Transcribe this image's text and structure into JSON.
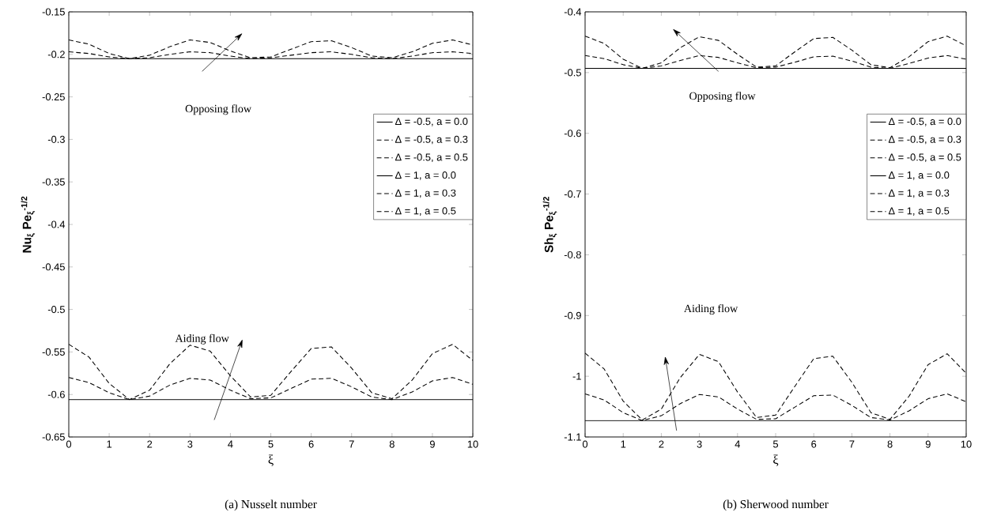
{
  "chart_data": [
    {
      "type": "line",
      "xlabel": "ξ",
      "ylabel": "Nu$_{ξ}$ Pe$_{ξ}$$^{-1/2}$",
      "x": [
        0,
        0.5,
        1,
        1.5,
        2,
        2.5,
        3,
        3.5,
        4,
        4.5,
        5,
        5.5,
        6,
        6.5,
        7,
        7.5,
        8,
        8.5,
        9,
        9.5,
        10
      ],
      "xlim": [
        0,
        10
      ],
      "xticks": [
        0,
        1,
        2,
        3,
        4,
        5,
        6,
        7,
        8,
        9,
        10
      ],
      "ylim": [
        -0.65,
        -0.15
      ],
      "yticks": [
        -0.65,
        -0.6,
        -0.55,
        -0.5,
        -0.45,
        -0.4,
        -0.35,
        -0.3,
        -0.25,
        -0.2,
        -0.15
      ],
      "legend": "right",
      "series": [
        {
          "name": "Δ = -0.5, a = 0.0",
          "color": "#000000",
          "line_style": "solid",
          "values": [
            -0.205,
            -0.205,
            -0.205,
            -0.205,
            -0.205,
            -0.205,
            -0.205,
            -0.205,
            -0.205,
            -0.205,
            -0.205,
            -0.205,
            -0.205,
            -0.205,
            -0.205,
            -0.205,
            -0.205,
            -0.205,
            -0.205,
            -0.205,
            -0.205
          ]
        },
        {
          "name": "Δ = -0.5, a = 0.3",
          "color": "#000000",
          "line_style": "dashed",
          "values": [
            -0.197,
            -0.199,
            -0.203,
            -0.205,
            -0.204,
            -0.2,
            -0.197,
            -0.198,
            -0.202,
            -0.205,
            -0.204,
            -0.201,
            -0.198,
            -0.197,
            -0.2,
            -0.204,
            -0.205,
            -0.202,
            -0.198,
            -0.197,
            -0.199
          ]
        },
        {
          "name": "Δ = -0.5, a = 0.5",
          "color": "#000000",
          "line_style": "dashed",
          "values": [
            -0.183,
            -0.188,
            -0.199,
            -0.205,
            -0.201,
            -0.191,
            -0.183,
            -0.186,
            -0.196,
            -0.204,
            -0.203,
            -0.194,
            -0.185,
            -0.184,
            -0.192,
            -0.202,
            -0.204,
            -0.197,
            -0.187,
            -0.183,
            -0.189
          ]
        },
        {
          "name": "Δ = 1, a = 0.0",
          "color": "#000000",
          "line_style": "solid",
          "values": [
            -0.606,
            -0.606,
            -0.606,
            -0.606,
            -0.606,
            -0.606,
            -0.606,
            -0.606,
            -0.606,
            -0.606,
            -0.606,
            -0.606,
            -0.606,
            -0.606,
            -0.606,
            -0.606,
            -0.606,
            -0.606,
            -0.606,
            -0.606,
            -0.606
          ]
        },
        {
          "name": "Δ = 1, a = 0.3",
          "color": "#000000",
          "line_style": "dashed",
          "values": [
            -0.58,
            -0.586,
            -0.598,
            -0.606,
            -0.602,
            -0.589,
            -0.581,
            -0.583,
            -0.595,
            -0.605,
            -0.604,
            -0.593,
            -0.582,
            -0.581,
            -0.591,
            -0.603,
            -0.606,
            -0.597,
            -0.584,
            -0.58,
            -0.588
          ]
        },
        {
          "name": "Δ = 1, a = 0.5",
          "color": "#000000",
          "line_style": "dashed",
          "values": [
            -0.541,
            -0.556,
            -0.587,
            -0.606,
            -0.595,
            -0.564,
            -0.542,
            -0.549,
            -0.578,
            -0.603,
            -0.601,
            -0.573,
            -0.546,
            -0.544,
            -0.569,
            -0.598,
            -0.605,
            -0.583,
            -0.552,
            -0.541,
            -0.56
          ]
        }
      ],
      "annotations": [
        "Opposing flow",
        "Aiding flow",
        "(a) Nusselt number"
      ]
    },
    {
      "type": "line",
      "xlabel": "ξ",
      "ylabel": "Sh$_{ξ}$ Pe$_{ξ}$$^{-1/2}$",
      "x": [
        0,
        0.5,
        1,
        1.5,
        2,
        2.5,
        3,
        3.5,
        4,
        4.5,
        5,
        5.5,
        6,
        6.5,
        7,
        7.5,
        8,
        8.5,
        9,
        9.5,
        10
      ],
      "xlim": [
        0,
        10
      ],
      "xticks": [
        0,
        1,
        2,
        3,
        4,
        5,
        6,
        7,
        8,
        9,
        10
      ],
      "ylim": [
        -1.1,
        -0.4
      ],
      "yticks": [
        -1.1,
        -1,
        -0.9,
        -0.8,
        -0.7,
        -0.6,
        -0.5,
        -0.4
      ],
      "legend": "right",
      "series": [
        {
          "name": "Δ = -0.5, a = 0.0",
          "color": "#000000",
          "line_style": "solid",
          "values": [
            -0.493,
            -0.493,
            -0.493,
            -0.493,
            -0.493,
            -0.493,
            -0.493,
            -0.493,
            -0.493,
            -0.493,
            -0.493,
            -0.493,
            -0.493,
            -0.493,
            -0.493,
            -0.493,
            -0.493,
            -0.493,
            -0.493,
            -0.493,
            -0.493
          ]
        },
        {
          "name": "Δ = -0.5, a = 0.3",
          "color": "#000000",
          "line_style": "dashed",
          "values": [
            -0.472,
            -0.477,
            -0.487,
            -0.493,
            -0.489,
            -0.48,
            -0.472,
            -0.475,
            -0.484,
            -0.492,
            -0.491,
            -0.483,
            -0.474,
            -0.473,
            -0.481,
            -0.491,
            -0.493,
            -0.485,
            -0.476,
            -0.472,
            -0.478
          ]
        },
        {
          "name": "Δ = -0.5, a = 0.5",
          "color": "#000000",
          "line_style": "dashed",
          "values": [
            -0.44,
            -0.452,
            -0.478,
            -0.493,
            -0.484,
            -0.459,
            -0.441,
            -0.447,
            -0.47,
            -0.491,
            -0.489,
            -0.466,
            -0.444,
            -0.442,
            -0.463,
            -0.487,
            -0.492,
            -0.474,
            -0.449,
            -0.44,
            -0.456
          ]
        },
        {
          "name": "Δ = 1, a = 0.0",
          "color": "#000000",
          "line_style": "solid",
          "values": [
            -1.073,
            -1.073,
            -1.073,
            -1.073,
            -1.073,
            -1.073,
            -1.073,
            -1.073,
            -1.073,
            -1.073,
            -1.073,
            -1.073,
            -1.073,
            -1.073,
            -1.073,
            -1.073,
            -1.073,
            -1.073,
            -1.073,
            -1.073,
            -1.073
          ]
        },
        {
          "name": "Δ = 1, a = 0.3",
          "color": "#000000",
          "line_style": "dashed",
          "values": [
            -1.029,
            -1.039,
            -1.06,
            -1.073,
            -1.065,
            -1.045,
            -1.03,
            -1.034,
            -1.054,
            -1.071,
            -1.07,
            -1.051,
            -1.032,
            -1.031,
            -1.048,
            -1.068,
            -1.072,
            -1.057,
            -1.037,
            -1.029,
            -1.042
          ]
        },
        {
          "name": "Δ = 1, a = 0.5",
          "color": "#000000",
          "line_style": "dashed",
          "values": [
            -0.962,
            -0.988,
            -1.041,
            -1.072,
            -1.054,
            -1.002,
            -0.964,
            -0.976,
            -1.026,
            -1.068,
            -1.064,
            -1.017,
            -0.971,
            -0.967,
            -1.01,
            -1.06,
            -1.071,
            -1.033,
            -0.981,
            -0.963,
            -0.995
          ]
        }
      ],
      "annotations": [
        "Opposing flow",
        "Aiding flow",
        "(b) Sherwood number"
      ]
    }
  ]
}
